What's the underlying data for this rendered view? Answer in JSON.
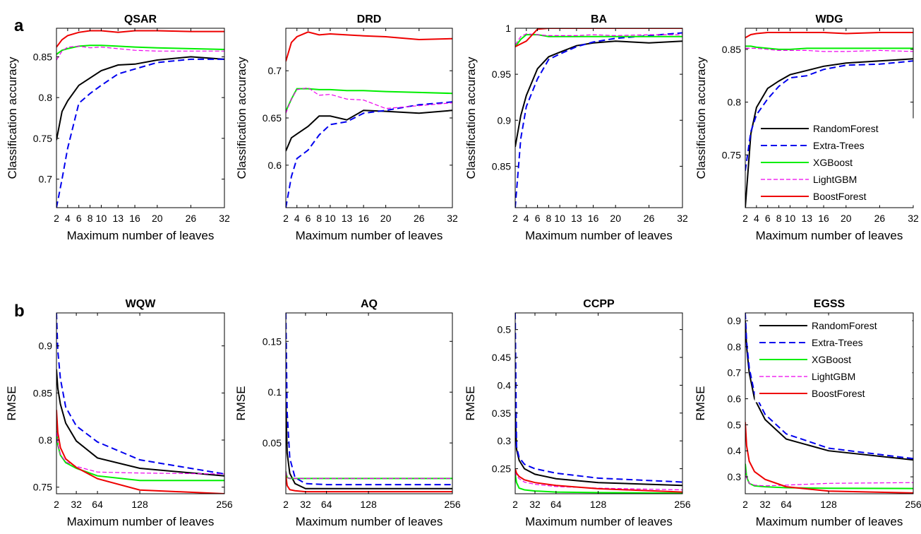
{
  "panel_labels": [
    "a",
    "b"
  ],
  "colors": {
    "RandomForest": "#000000",
    "Extra-Trees": "#0000ee",
    "XGBoost": "#00ee00",
    "LightGBM": "#ee00ee",
    "BoostForest": "#ee0000"
  },
  "legend": [
    "RandomForest",
    "Extra-Trees",
    "XGBoost",
    "LightGBM",
    "BoostForest"
  ],
  "chart_data": [
    {
      "type": "line",
      "title": "QSAR",
      "xlabel": "Maximum number of leaves",
      "ylabel": "Classification accuracy",
      "xlim": [
        2,
        32
      ],
      "ylim": [
        0.665,
        0.885
      ],
      "xticks": [
        2,
        4,
        6,
        8,
        10,
        13,
        16,
        20,
        26,
        32
      ],
      "xtick_labels": [
        "2",
        "4",
        "6",
        "8",
        "10",
        "13",
        "16",
        "20",
        "26",
        "32"
      ],
      "yticks": [
        0.7,
        0.75,
        0.8,
        0.85
      ],
      "ytick_labels": [
        "0.7",
        "0.75",
        "0.8",
        "0.85"
      ],
      "x": [
        2,
        3,
        4,
        6,
        8,
        10,
        13,
        16,
        20,
        26,
        32
      ],
      "series": [
        {
          "name": "RandomForest",
          "dash": "solid",
          "values": [
            0.748,
            0.783,
            0.796,
            0.815,
            0.824,
            0.833,
            0.84,
            0.841,
            0.846,
            0.85,
            0.847
          ]
        },
        {
          "name": "Extra-Trees",
          "dash": "dash",
          "values": [
            0.665,
            0.7,
            0.738,
            0.793,
            0.805,
            0.815,
            0.829,
            0.835,
            0.843,
            0.847,
            0.847
          ]
        },
        {
          "name": "XGBoost",
          "dash": "solid",
          "values": [
            0.853,
            0.858,
            0.86,
            0.863,
            0.864,
            0.864,
            0.863,
            0.862,
            0.861,
            0.86,
            0.859
          ]
        },
        {
          "name": "LightGBM",
          "dash": "dash",
          "values": [
            0.846,
            0.857,
            0.862,
            0.863,
            0.861,
            0.862,
            0.86,
            0.858,
            0.857,
            0.857,
            0.857
          ]
        },
        {
          "name": "BoostForest",
          "dash": "solid",
          "values": [
            0.862,
            0.871,
            0.876,
            0.88,
            0.882,
            0.882,
            0.88,
            0.882,
            0.882,
            0.881,
            0.881
          ]
        }
      ]
    },
    {
      "type": "line",
      "title": "DRD",
      "xlabel": "Maximum number of leaves",
      "ylabel": "Classification accuracy",
      "xlim": [
        2,
        32
      ],
      "ylim": [
        0.555,
        0.745
      ],
      "xticks": [
        2,
        4,
        6,
        8,
        10,
        13,
        16,
        20,
        26,
        32
      ],
      "xtick_labels": [
        "2",
        "4",
        "6",
        "8",
        "10",
        "13",
        "16",
        "20",
        "26",
        "32"
      ],
      "yticks": [
        0.6,
        0.65,
        0.7
      ],
      "ytick_labels": [
        "0.6",
        "0.65",
        "0.7"
      ],
      "x": [
        2,
        3,
        4,
        6,
        8,
        10,
        13,
        16,
        20,
        26,
        32
      ],
      "series": [
        {
          "name": "RandomForest",
          "dash": "solid",
          "values": [
            0.615,
            0.629,
            0.633,
            0.641,
            0.652,
            0.652,
            0.648,
            0.658,
            0.657,
            0.655,
            0.658
          ]
        },
        {
          "name": "Extra-Trees",
          "dash": "dash",
          "values": [
            0.555,
            0.588,
            0.607,
            0.616,
            0.632,
            0.643,
            0.646,
            0.655,
            0.658,
            0.664,
            0.667
          ]
        },
        {
          "name": "XGBoost",
          "dash": "solid",
          "values": [
            0.657,
            0.67,
            0.681,
            0.681,
            0.68,
            0.68,
            0.679,
            0.679,
            0.678,
            0.677,
            0.676
          ]
        },
        {
          "name": "LightGBM",
          "dash": "dash",
          "values": [
            0.655,
            0.67,
            0.68,
            0.682,
            0.674,
            0.675,
            0.67,
            0.669,
            0.66,
            0.663,
            0.666
          ]
        },
        {
          "name": "BoostForest",
          "dash": "solid",
          "values": [
            0.71,
            0.73,
            0.736,
            0.741,
            0.738,
            0.739,
            0.738,
            0.737,
            0.736,
            0.733,
            0.734
          ]
        }
      ]
    },
    {
      "type": "line",
      "title": "BA",
      "xlabel": "Maximum number of leaves",
      "ylabel": "Classification accuracy",
      "xlim": [
        2,
        32
      ],
      "ylim": [
        0.805,
        1.0
      ],
      "xticks": [
        2,
        4,
        6,
        8,
        10,
        13,
        16,
        20,
        26,
        32
      ],
      "xtick_labels": [
        "2",
        "4",
        "6",
        "8",
        "10",
        "13",
        "16",
        "20",
        "26",
        "32"
      ],
      "yticks": [
        0.85,
        0.9,
        0.95,
        1.0
      ],
      "ytick_labels": [
        "0.85",
        "0.9",
        "0.95",
        "1"
      ],
      "x": [
        2,
        3,
        4,
        6,
        8,
        10,
        13,
        16,
        20,
        26,
        32
      ],
      "series": [
        {
          "name": "RandomForest",
          "dash": "solid",
          "values": [
            0.871,
            0.905,
            0.927,
            0.956,
            0.969,
            0.974,
            0.981,
            0.984,
            0.986,
            0.984,
            0.986
          ]
        },
        {
          "name": "Extra-Trees",
          "dash": "dash",
          "values": [
            0.805,
            0.88,
            0.915,
            0.945,
            0.966,
            0.972,
            0.98,
            0.985,
            0.989,
            0.992,
            0.995
          ]
        },
        {
          "name": "XGBoost",
          "dash": "solid",
          "values": [
            0.98,
            0.988,
            0.993,
            0.993,
            0.991,
            0.991,
            0.991,
            0.991,
            0.991,
            0.991,
            0.991
          ]
        },
        {
          "name": "LightGBM",
          "dash": "dash",
          "values": [
            0.982,
            0.991,
            0.994,
            0.993,
            0.992,
            0.992,
            0.992,
            0.993,
            0.992,
            0.993,
            0.993
          ]
        },
        {
          "name": "BoostForest",
          "dash": "solid",
          "values": [
            0.98,
            0.983,
            0.986,
            0.999,
            1.0,
            1.0,
            1.0,
            1.0,
            1.0,
            1.0,
            1.0
          ]
        }
      ]
    },
    {
      "type": "line",
      "title": "WDG",
      "xlabel": "Maximum number of leaves",
      "ylabel": "Classification accuracy",
      "xlim": [
        2,
        32
      ],
      "ylim": [
        0.7,
        0.87
      ],
      "xticks": [
        2,
        4,
        6,
        8,
        10,
        13,
        16,
        20,
        26,
        32
      ],
      "xtick_labels": [
        "2",
        "4",
        "6",
        "8",
        "10",
        "13",
        "16",
        "20",
        "26",
        "32"
      ],
      "yticks": [
        0.75,
        0.8,
        0.85
      ],
      "ytick_labels": [
        "0.75",
        "0.8",
        "0.85"
      ],
      "x": [
        2,
        3,
        4,
        6,
        8,
        10,
        13,
        16,
        20,
        26,
        32
      ],
      "legend": "right",
      "series": [
        {
          "name": "RandomForest",
          "dash": "solid",
          "values": [
            0.7,
            0.77,
            0.795,
            0.813,
            0.82,
            0.826,
            0.83,
            0.834,
            0.837,
            0.839,
            0.841
          ]
        },
        {
          "name": "Extra-Trees",
          "dash": "dash",
          "values": [
            0.735,
            0.772,
            0.788,
            0.803,
            0.815,
            0.823,
            0.825,
            0.831,
            0.835,
            0.836,
            0.839
          ]
        },
        {
          "name": "XGBoost",
          "dash": "solid",
          "values": [
            0.853,
            0.853,
            0.852,
            0.851,
            0.85,
            0.85,
            0.851,
            0.851,
            0.851,
            0.851,
            0.851
          ]
        },
        {
          "name": "LightGBM",
          "dash": "dash",
          "values": [
            0.851,
            0.851,
            0.851,
            0.85,
            0.849,
            0.849,
            0.849,
            0.848,
            0.848,
            0.849,
            0.848
          ]
        },
        {
          "name": "BoostForest",
          "dash": "solid",
          "values": [
            0.861,
            0.864,
            0.865,
            0.866,
            0.866,
            0.866,
            0.866,
            0.866,
            0.865,
            0.866,
            0.866
          ]
        }
      ]
    },
    {
      "type": "line",
      "title": "WQW",
      "xlabel": "Maximum number of leaves",
      "ylabel": "RMSE",
      "xlim": [
        2,
        256
      ],
      "ylim": [
        0.743,
        0.935
      ],
      "xticks": [
        2,
        32,
        64,
        128,
        256
      ],
      "xtick_labels": [
        "2",
        "32",
        "64",
        "128",
        "256"
      ],
      "yticks": [
        0.75,
        0.8,
        0.85,
        0.9
      ],
      "ytick_labels": [
        "0.75",
        "0.8",
        "0.85",
        "0.9"
      ],
      "x": [
        2,
        4,
        8,
        16,
        32,
        64,
        128,
        256
      ],
      "series": [
        {
          "name": "RandomForest",
          "dash": "solid",
          "values": [
            0.875,
            0.855,
            0.838,
            0.818,
            0.799,
            0.781,
            0.77,
            0.762
          ]
        },
        {
          "name": "Extra-Trees",
          "dash": "dash",
          "values": [
            0.935,
            0.895,
            0.865,
            0.835,
            0.815,
            0.798,
            0.779,
            0.764
          ]
        },
        {
          "name": "XGBoost",
          "dash": "solid",
          "values": [
            0.81,
            0.795,
            0.784,
            0.776,
            0.77,
            0.762,
            0.757,
            0.757
          ]
        },
        {
          "name": "LightGBM",
          "dash": "dash",
          "values": [
            0.815,
            0.796,
            0.785,
            0.777,
            0.772,
            0.766,
            0.765,
            0.764
          ]
        },
        {
          "name": "BoostForest",
          "dash": "solid",
          "values": [
            0.832,
            0.808,
            0.792,
            0.78,
            0.771,
            0.759,
            0.747,
            0.743
          ]
        }
      ]
    },
    {
      "type": "line",
      "title": "AQ",
      "xlabel": "Maximum number of leaves",
      "ylabel": "RMSE",
      "xlim": [
        2,
        256
      ],
      "ylim": [
        0.0,
        0.178
      ],
      "xticks": [
        2,
        32,
        64,
        128,
        256
      ],
      "xtick_labels": [
        "2",
        "32",
        "64",
        "128",
        "256"
      ],
      "yticks": [
        0.05,
        0.1,
        0.15
      ],
      "ytick_labels": [
        "0.05",
        "0.1",
        "0.15"
      ],
      "x": [
        2,
        4,
        8,
        16,
        32,
        64,
        128,
        256
      ],
      "series": [
        {
          "name": "RandomForest",
          "dash": "solid",
          "values": [
            0.09,
            0.04,
            0.02,
            0.01,
            0.005,
            0.005,
            0.005,
            0.005
          ]
        },
        {
          "name": "Extra-Trees",
          "dash": "dash",
          "values": [
            0.178,
            0.08,
            0.035,
            0.016,
            0.01,
            0.009,
            0.009,
            0.009
          ]
        },
        {
          "name": "XGBoost",
          "dash": "solid",
          "values": [
            0.022,
            0.016,
            0.015,
            0.015,
            0.015,
            0.015,
            0.015,
            0.015
          ]
        },
        {
          "name": "LightGBM",
          "dash": "dash",
          "values": [
            0.022,
            0.016,
            0.015,
            0.015,
            0.015,
            0.015,
            0.015,
            0.015
          ]
        },
        {
          "name": "BoostForest",
          "dash": "solid",
          "values": [
            0.018,
            0.008,
            0.004,
            0.003,
            0.002,
            0.002,
            0.002,
            0.002
          ]
        }
      ]
    },
    {
      "type": "line",
      "title": "CCPP",
      "xlabel": "Maximum number of leaves",
      "ylabel": "RMSE",
      "xlim": [
        2,
        256
      ],
      "ylim": [
        0.205,
        0.53
      ],
      "xticks": [
        2,
        32,
        64,
        128,
        256
      ],
      "xtick_labels": [
        "2",
        "32",
        "64",
        "128",
        "256"
      ],
      "yticks": [
        0.25,
        0.3,
        0.35,
        0.4,
        0.45,
        0.5
      ],
      "ytick_labels": [
        "0.25",
        "0.3",
        "0.35",
        "0.4",
        "0.45",
        "0.5"
      ],
      "x": [
        2,
        4,
        8,
        16,
        32,
        64,
        128,
        256
      ],
      "series": [
        {
          "name": "RandomForest",
          "dash": "solid",
          "values": [
            0.35,
            0.285,
            0.265,
            0.25,
            0.24,
            0.232,
            0.225,
            0.22
          ]
        },
        {
          "name": "Extra-Trees",
          "dash": "dash",
          "values": [
            0.53,
            0.29,
            0.27,
            0.258,
            0.25,
            0.242,
            0.233,
            0.226
          ]
        },
        {
          "name": "XGBoost",
          "dash": "solid",
          "values": [
            0.24,
            0.225,
            0.215,
            0.212,
            0.21,
            0.208,
            0.207,
            0.206
          ]
        },
        {
          "name": "LightGBM",
          "dash": "dash",
          "values": [
            0.245,
            0.238,
            0.232,
            0.226,
            0.222,
            0.218,
            0.215,
            0.212
          ]
        },
        {
          "name": "BoostForest",
          "dash": "solid",
          "values": [
            0.25,
            0.242,
            0.236,
            0.23,
            0.225,
            0.22,
            0.214,
            0.208
          ]
        }
      ]
    },
    {
      "type": "line",
      "title": "EGSS",
      "xlabel": "Maximum number of leaves",
      "ylabel": "RMSE",
      "xlim": [
        2,
        256
      ],
      "ylim": [
        0.235,
        0.93
      ],
      "xticks": [
        2,
        32,
        64,
        128,
        256
      ],
      "xtick_labels": [
        "2",
        "32",
        "64",
        "128",
        "256"
      ],
      "yticks": [
        0.3,
        0.4,
        0.5,
        0.6,
        0.7,
        0.8,
        0.9
      ],
      "ytick_labels": [
        "0.3",
        "0.4",
        "0.5",
        "0.6",
        "0.7",
        "0.8",
        "0.9"
      ],
      "x": [
        2,
        4,
        8,
        16,
        32,
        64,
        128,
        256
      ],
      "legend": "top-right",
      "series": [
        {
          "name": "RandomForest",
          "dash": "solid",
          "values": [
            0.9,
            0.8,
            0.7,
            0.6,
            0.52,
            0.445,
            0.4,
            0.365
          ]
        },
        {
          "name": "Extra-Trees",
          "dash": "dash",
          "values": [
            0.93,
            0.82,
            0.72,
            0.62,
            0.54,
            0.465,
            0.41,
            0.37
          ]
        },
        {
          "name": "XGBoost",
          "dash": "solid",
          "values": [
            0.35,
            0.3,
            0.275,
            0.265,
            0.262,
            0.258,
            0.256,
            0.255
          ]
        },
        {
          "name": "LightGBM",
          "dash": "dash",
          "values": [
            0.33,
            0.295,
            0.275,
            0.268,
            0.265,
            0.268,
            0.275,
            0.278
          ]
        },
        {
          "name": "BoostForest",
          "dash": "solid",
          "values": [
            0.51,
            0.42,
            0.36,
            0.32,
            0.29,
            0.262,
            0.245,
            0.238
          ]
        }
      ]
    }
  ]
}
